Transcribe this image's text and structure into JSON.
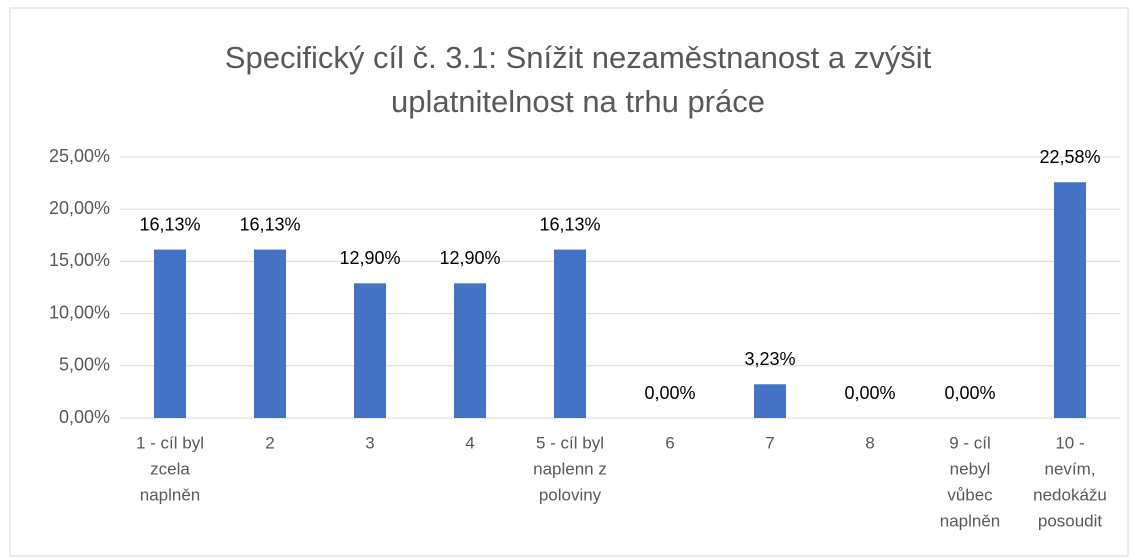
{
  "chart_data": {
    "type": "bar",
    "title": "Specifický cíl č. 3.1: Snížit nezaměstnanost a zvýšit uplatnitelnost na trhu práce",
    "categories": [
      [
        "1 - cíl byl",
        "zcela",
        "naplněn"
      ],
      [
        "2"
      ],
      [
        "3"
      ],
      [
        "4"
      ],
      [
        "5 - cíl byl",
        "naplenn z",
        "poloviny"
      ],
      [
        "6"
      ],
      [
        "7"
      ],
      [
        "8"
      ],
      [
        "9 - cíl",
        "nebyl",
        "vůbec",
        "naplněn"
      ],
      [
        "10 -",
        "nevím,",
        "nedokážu",
        "posoudit"
      ]
    ],
    "values": [
      16.13,
      16.13,
      12.9,
      12.9,
      16.13,
      0,
      3.23,
      0,
      0,
      22.58
    ],
    "value_labels": [
      "16,13%",
      "16,13%",
      "12,90%",
      "12,90%",
      "16,13%",
      "0,00%",
      "3,23%",
      "0,00%",
      "0,00%",
      "22,58%"
    ],
    "color": "#4472c4",
    "ylim": [
      0,
      25
    ],
    "yticks": [
      {
        "value": 0,
        "label": "0,00%"
      },
      {
        "value": 5,
        "label": "5,00%"
      },
      {
        "value": 10,
        "label": "10,00%"
      },
      {
        "value": 15,
        "label": "15,00%"
      },
      {
        "value": 20,
        "label": "20,00%"
      },
      {
        "value": 25,
        "label": "25,00%"
      }
    ],
    "grid": true
  }
}
